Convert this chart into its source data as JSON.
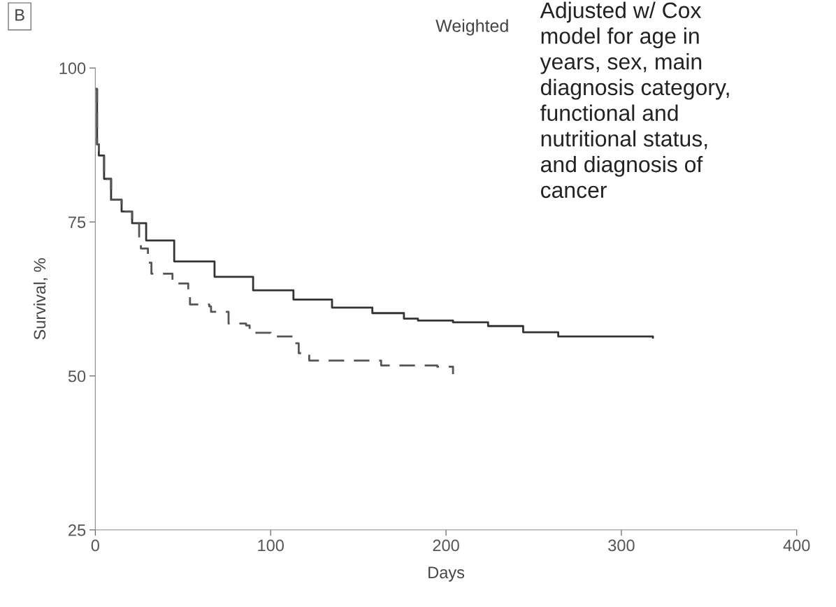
{
  "chart_data": {
    "type": "step",
    "title": "Weighted",
    "xlabel": "Days",
    "ylabel": "Survival, %",
    "x": [
      0,
      1,
      2,
      5,
      9,
      15,
      21,
      29,
      45,
      68,
      90,
      113,
      135,
      158,
      176,
      184,
      204,
      224,
      244,
      264,
      318
    ],
    "series": [
      {
        "color": "#333333",
        "line_style": "solid",
        "values": [
          96.6,
          87.6,
          85.8,
          82,
          78.6,
          76.7,
          74.8,
          72,
          68.6,
          66.1,
          63.9,
          62.4,
          61.1,
          60.2,
          59.3,
          59,
          58.7,
          58.1,
          57.1,
          56.4,
          56.2
        ]
      },
      {
        "color": "#555555",
        "line_style": "dashed",
        "x": [
          0,
          1,
          2,
          5,
          9,
          15,
          21,
          25,
          26,
          30,
          32,
          44,
          53,
          54,
          65,
          66,
          76,
          86,
          88,
          100,
          113,
          116,
          122,
          163,
          195,
          204
        ],
        "values": [
          96.6,
          87.6,
          85.8,
          82,
          78.6,
          76.7,
          74.8,
          72.2,
          70.7,
          68.4,
          66.6,
          65,
          63.5,
          61.6,
          61.3,
          60.4,
          58.5,
          58.2,
          57,
          56.4,
          55.3,
          53.7,
          52.5,
          51.7,
          51.5,
          50.3
        ]
      }
    ],
    "xlim": [
      0,
      400
    ],
    "xticks": [
      0,
      100,
      200,
      300,
      400
    ],
    "ylim": [
      25,
      100
    ],
    "yticks": [
      25,
      50,
      75,
      100
    ],
    "grid": false,
    "legend": false,
    "marker": "none",
    "annotations": [
      "B",
      "Adjusted w/ Cox\nmodel for age in\nyears, sex, main\ndiagnosis category,\nfunctional and\nnutritional status,\nand diagnosis of\ncancer"
    ]
  }
}
